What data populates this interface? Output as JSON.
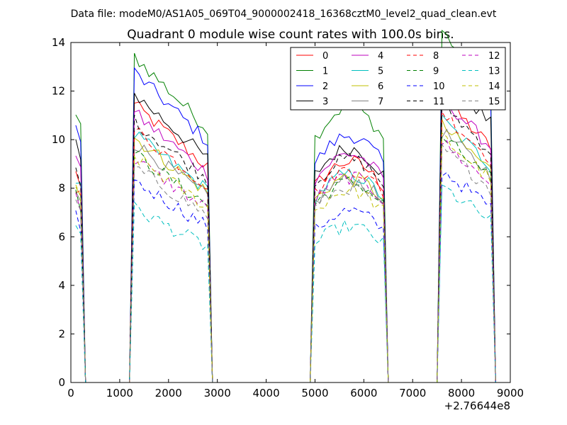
{
  "chart_data": {
    "type": "line",
    "supertitle": "Data file: modeM0/AS1A05_069T04_9000002418_16368cztM0_level2_quad_clean.evt",
    "title": "Quadrant 0 module wise count rates with 100.0s bins.",
    "xlabel": "",
    "ylabel": "",
    "x_offset_label": "+2.76644e8",
    "xlim": [
      0,
      9000
    ],
    "ylim": [
      0,
      14
    ],
    "xticks": [
      0,
      1000,
      2000,
      3000,
      4000,
      5000,
      6000,
      7000,
      8000,
      9000
    ],
    "yticks": [
      0,
      2,
      4,
      6,
      8,
      10,
      12,
      14
    ],
    "grid": false,
    "legend": {
      "position": "top-right",
      "columns": 4
    },
    "segments": [
      {
        "x": [
          100,
          200,
          300
        ]
      },
      {
        "x": [
          1200,
          1300,
          1400,
          1500,
          1600,
          1700,
          1800,
          1900,
          2000,
          2100,
          2200,
          2300,
          2400,
          2500,
          2600,
          2700,
          2800,
          2900
        ]
      },
      {
        "x": [
          4900,
          5000,
          5100,
          5200,
          5300,
          5400,
          5500,
          5600,
          5700,
          5800,
          5900,
          6000,
          6100,
          6200,
          6300,
          6400,
          6500
        ]
      },
      {
        "x": [
          7500,
          7600,
          7700,
          7800,
          7900,
          8000,
          8100,
          8200,
          8300,
          8400,
          8500,
          8600,
          8700
        ]
      }
    ],
    "gap_baseline": [
      [
        300,
        1200
      ],
      [
        2900,
        4900
      ],
      [
        6500,
        7500
      ]
    ],
    "series": [
      {
        "name": "0",
        "color": "#ff0000",
        "dash": "solid",
        "levels": [
          8.6,
          10.2,
          8.5,
          10.2
        ]
      },
      {
        "name": "1",
        "color": "#008000",
        "dash": "solid",
        "levels": [
          11.0,
          12.0,
          10.6,
          12.6
        ]
      },
      {
        "name": "2",
        "color": "#0000ff",
        "dash": "solid",
        "levels": [
          10.5,
          11.4,
          9.5,
          11.8
        ]
      },
      {
        "name": "3",
        "color": "#000000",
        "dash": "solid",
        "levels": [
          9.9,
          10.6,
          9.0,
          11.2
        ]
      },
      {
        "name": "4",
        "color": "#bf00bf",
        "dash": "solid",
        "levels": [
          9.5,
          9.9,
          8.8,
          10.2
        ]
      },
      {
        "name": "5",
        "color": "#00bfbf",
        "dash": "solid",
        "levels": [
          8.4,
          9.1,
          8.0,
          9.4
        ]
      },
      {
        "name": "6",
        "color": "#bfbf00",
        "dash": "solid",
        "levels": [
          8.2,
          9.0,
          7.9,
          9.2
        ]
      },
      {
        "name": "7",
        "color": "#808080",
        "dash": "solid",
        "levels": [
          8.0,
          8.8,
          7.8,
          9.0
        ]
      },
      {
        "name": "8",
        "color": "#ff0000",
        "dash": "dashed",
        "levels": [
          8.1,
          9.3,
          8.2,
          9.7
        ]
      },
      {
        "name": "9",
        "color": "#008000",
        "dash": "dashed",
        "levels": [
          7.7,
          8.4,
          7.7,
          8.8
        ]
      },
      {
        "name": "10",
        "color": "#0000ff",
        "dash": "dashed",
        "levels": [
          6.8,
          7.4,
          6.6,
          7.6
        ]
      },
      {
        "name": "11",
        "color": "#000000",
        "dash": "dashed",
        "levels": [
          8.8,
          9.6,
          8.6,
          10.0
        ]
      },
      {
        "name": "12",
        "color": "#bf00bf",
        "dash": "dashed",
        "levels": [
          7.6,
          8.2,
          7.9,
          8.6
        ]
      },
      {
        "name": "13",
        "color": "#00bfbf",
        "dash": "dashed",
        "levels": [
          6.6,
          6.4,
          6.0,
          7.0
        ]
      },
      {
        "name": "14",
        "color": "#bfbf00",
        "dash": "dashed",
        "levels": [
          7.9,
          8.3,
          7.4,
          8.8
        ]
      },
      {
        "name": "15",
        "color": "#808080",
        "dash": "dashed",
        "levels": [
          7.3,
          7.9,
          7.5,
          8.4
        ]
      }
    ]
  }
}
